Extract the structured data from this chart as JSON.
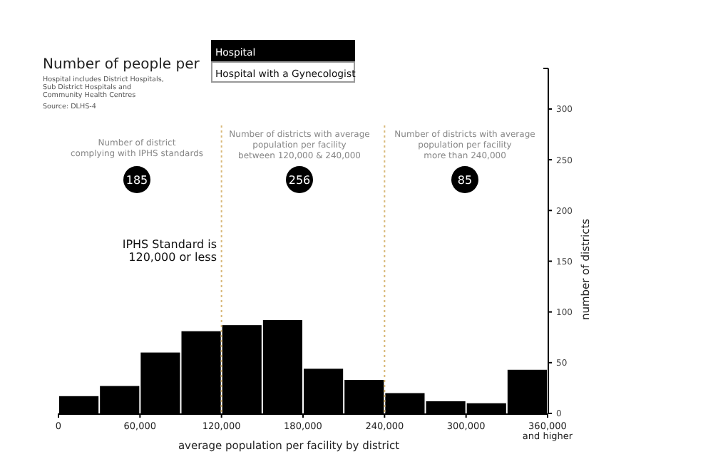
{
  "chart_data": {
    "type": "histogram",
    "title": "Number of people per",
    "subtitle": "Hospital includes District Hospitals,\nSub District Hospitals and\nCommunity Health Centres",
    "xlabel": "average population per facility by district",
    "ylabel": "number of districts",
    "bins": [
      0,
      30000,
      60000,
      90000,
      120000,
      150000,
      180000,
      210000,
      240000,
      270000,
      300000,
      330000,
      360000
    ],
    "values": [
      17,
      27,
      60,
      81,
      87,
      92,
      44,
      33,
      20,
      12,
      10,
      43
    ],
    "color": "#000000",
    "xlim": [
      0,
      360000
    ],
    "xticks": [
      0,
      {
        "value": 60000,
        "label": "60,000"
      },
      {
        "value": 120000,
        "label": "120,000"
      },
      {
        "value": 180000,
        "label": "180,000"
      },
      {
        "value": 240000,
        "label": "240,000"
      },
      {
        "value": 300000,
        "label": "300,000"
      },
      {
        "value": 360000,
        "label": "360,000\nand higher"
      }
    ],
    "ylim": [
      0,
      340
    ],
    "yticks": [
      0,
      50,
      100,
      150,
      200,
      250,
      300
    ],
    "grid": false,
    "ref_lines": [
      {
        "axis": "x",
        "value": 120000,
        "color": "#d8b878",
        "line_style": "dotted"
      },
      {
        "axis": "x",
        "value": 240000,
        "color": "#d8b878",
        "line_style": "dotted"
      }
    ],
    "annotations": [
      "Source: DLHS-4",
      "Hospital",
      "Hospital with a Gynecologist",
      "Number of district\ncomplying with IPHS standards",
      "Number of districts with average\npopulation per facility\nbetween 120,000 & 240,000",
      "Number of districts with average\npopulation per facility\nmore than 240,000",
      "185",
      "256",
      "85",
      "IPHS Standard is\n120,000 or less"
    ]
  }
}
